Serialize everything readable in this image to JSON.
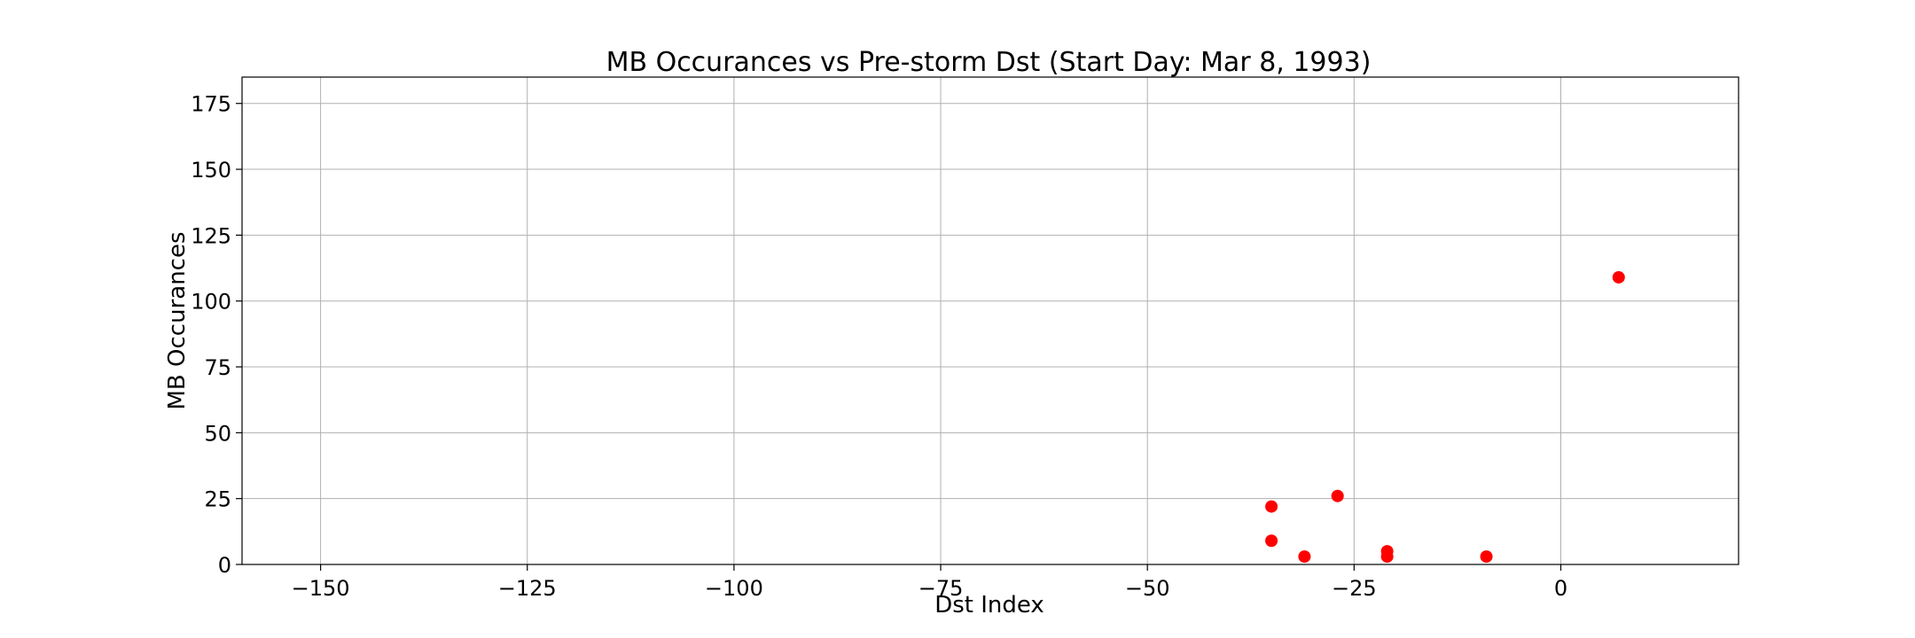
{
  "chart_data": {
    "type": "scatter",
    "title": "MB Occurances vs Pre-storm Dst (Start Day: Mar 8, 1993)",
    "xlabel": "Dst Index",
    "ylabel": "MB Occurances",
    "xlim": [
      -159.5,
      21.5
    ],
    "ylim": [
      0,
      185
    ],
    "xticks": [
      -150,
      -125,
      -100,
      -75,
      -50,
      -25,
      0
    ],
    "xtick_labels": [
      "−150",
      "−125",
      "−100",
      "−75",
      "−50",
      "−25",
      "0"
    ],
    "yticks": [
      0,
      25,
      50,
      75,
      100,
      125,
      150,
      175
    ],
    "ytick_labels": [
      "0",
      "25",
      "50",
      "75",
      "100",
      "125",
      "150",
      "175"
    ],
    "grid": true,
    "legend": "none",
    "marker_color": "#ff0000",
    "points": [
      {
        "x": -35,
        "y": 22
      },
      {
        "x": -35,
        "y": 9
      },
      {
        "x": -31,
        "y": 3
      },
      {
        "x": -27,
        "y": 26
      },
      {
        "x": -21,
        "y": 5
      },
      {
        "x": -21,
        "y": 3
      },
      {
        "x": -9,
        "y": 3
      },
      {
        "x": 7,
        "y": 109
      }
    ]
  }
}
